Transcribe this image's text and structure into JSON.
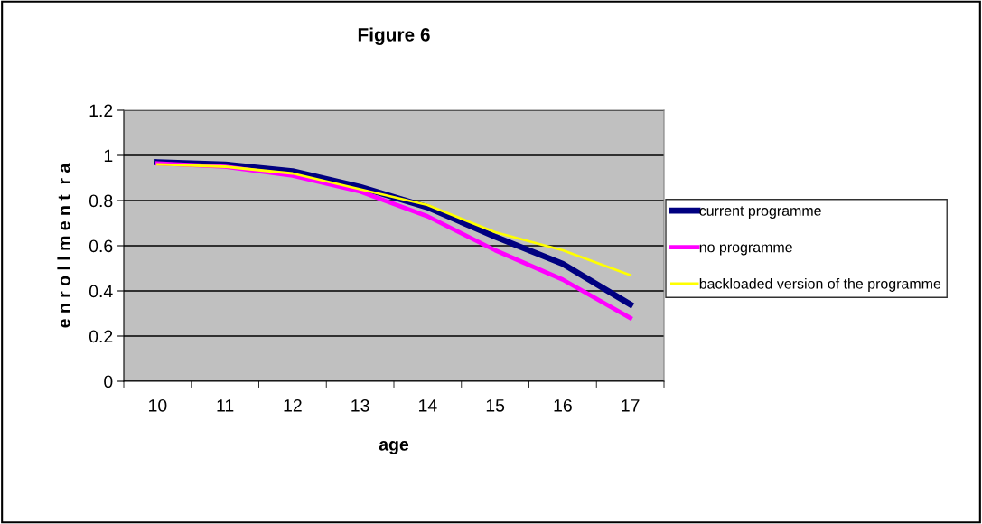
{
  "chart_data": {
    "type": "line",
    "title": "Figure 6",
    "xlabel": "age",
    "ylabel": "e n r o l l m e n t  r a",
    "categories": [
      "10",
      "11",
      "12",
      "13",
      "14",
      "15",
      "16",
      "17"
    ],
    "series": [
      {
        "name": "current programme",
        "color": "#000080",
        "values": [
          0.97,
          0.96,
          0.93,
          0.86,
          0.77,
          0.64,
          0.52,
          0.34
        ]
      },
      {
        "name": "no programme",
        "color": "#ff00ff",
        "values": [
          0.965,
          0.95,
          0.91,
          0.84,
          0.73,
          0.58,
          0.45,
          0.28
        ]
      },
      {
        "name": "backloaded version of the programme",
        "color": "#ffff00",
        "values": [
          0.96,
          0.95,
          0.92,
          0.85,
          0.78,
          0.66,
          0.58,
          0.47
        ]
      }
    ],
    "ylim": [
      0,
      1.2
    ],
    "yticks": [
      0,
      0.2,
      0.4,
      0.6,
      0.8,
      1,
      1.2
    ],
    "grid": "y",
    "legend": "right",
    "marker": "none",
    "line_style": "solid"
  }
}
